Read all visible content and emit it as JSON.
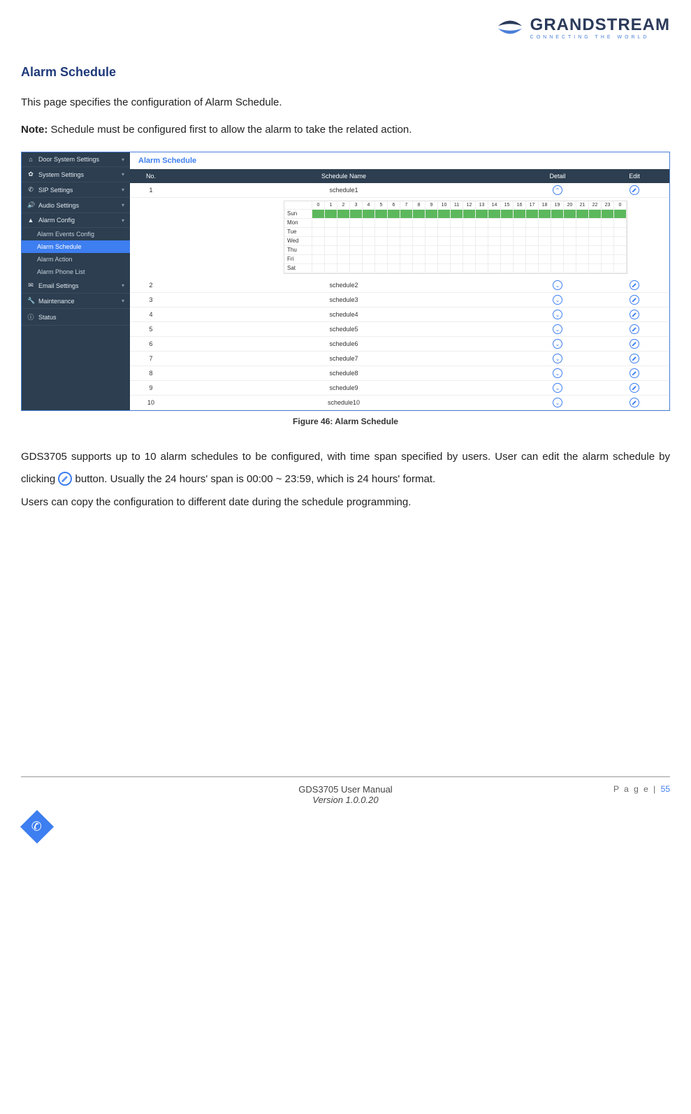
{
  "header": {
    "brand": "GRANDSTREAM",
    "tagline": "CONNECTING THE WORLD"
  },
  "section": {
    "title": "Alarm Schedule",
    "intro": "This page specifies the configuration of Alarm Schedule.",
    "note_label": "Note:",
    "note_text": " Schedule must be configured first to allow the alarm to take the related action."
  },
  "screenshot": {
    "panel_title": "Alarm Schedule",
    "sidebar": {
      "items": [
        {
          "icon": "⌂",
          "label": "Door System Settings",
          "expandable": true
        },
        {
          "icon": "✿",
          "label": "System Settings",
          "expandable": true
        },
        {
          "icon": "✆",
          "label": "SIP Settings",
          "expandable": true
        },
        {
          "icon": "🔊",
          "label": "Audio Settings",
          "expandable": true
        },
        {
          "icon": "▲",
          "label": "Alarm Config",
          "expandable": true
        }
      ],
      "subitems": [
        {
          "label": "Alarm Events Config",
          "active": false
        },
        {
          "label": "Alarm Schedule",
          "active": true
        },
        {
          "label": "Alarm Action",
          "active": false
        },
        {
          "label": "Alarm Phone List",
          "active": false
        }
      ],
      "tail": [
        {
          "icon": "✉",
          "label": "Email Settings",
          "expandable": true
        },
        {
          "icon": "🔧",
          "label": "Maintenance",
          "expandable": true
        },
        {
          "icon": "ⓘ",
          "label": "Status",
          "expandable": false
        }
      ]
    },
    "table": {
      "columns": {
        "no": "No.",
        "name": "Schedule Name",
        "detail": "Detail",
        "edit": "Edit"
      },
      "rows": [
        {
          "no": "1",
          "name": "schedule1",
          "expanded": true,
          "filled_day": "Sun"
        },
        {
          "no": "2",
          "name": "schedule2"
        },
        {
          "no": "3",
          "name": "schedule3"
        },
        {
          "no": "4",
          "name": "schedule4"
        },
        {
          "no": "5",
          "name": "schedule5"
        },
        {
          "no": "6",
          "name": "schedule6"
        },
        {
          "no": "7",
          "name": "schedule7"
        },
        {
          "no": "8",
          "name": "schedule8"
        },
        {
          "no": "9",
          "name": "schedule9"
        },
        {
          "no": "10",
          "name": "schedule10"
        }
      ],
      "hours": [
        "0",
        "1",
        "2",
        "3",
        "4",
        "5",
        "6",
        "7",
        "8",
        "9",
        "10",
        "11",
        "12",
        "13",
        "14",
        "15",
        "16",
        "17",
        "18",
        "19",
        "20",
        "21",
        "22",
        "23",
        "0"
      ],
      "days": [
        "Sun",
        "Mon",
        "Tue",
        "Wed",
        "Thu",
        "Fri",
        "Sat"
      ]
    }
  },
  "figure_caption": "Figure 46: Alarm Schedule",
  "body2": {
    "p1a": "GDS3705 supports up to 10 alarm schedules to be configured, with time span specified by users. User can edit the alarm schedule by clicking ",
    "p1b": " button. Usually the 24 hours' span is 00:00 ~ 23:59, which is 24 hours' format.",
    "p2": "Users can copy the configuration to different date during the schedule programming."
  },
  "footer": {
    "manual": "GDS3705 User Manual",
    "version": "Version 1.0.0.20",
    "page_label": "P a g e  | ",
    "page_num": "55"
  },
  "colors": {
    "accent": "#3d7ef0",
    "sidebar_bg": "#2c3e50",
    "title_color": "#1f3a7a",
    "fill_green": "#5cb85c"
  }
}
